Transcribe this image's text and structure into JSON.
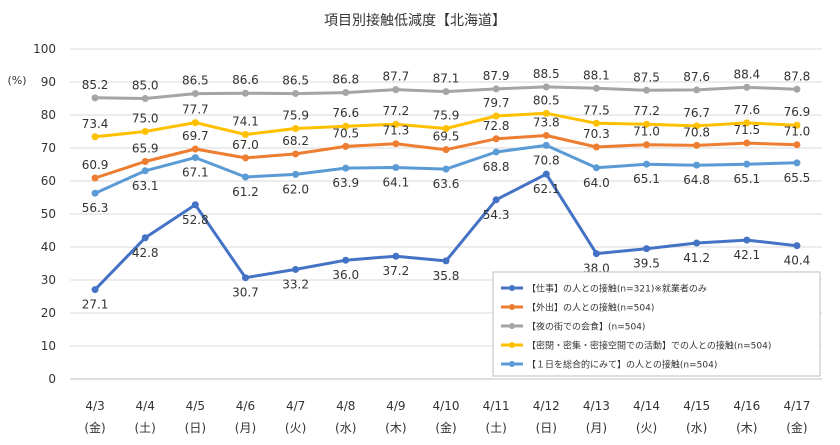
{
  "chart_data": {
    "type": "line",
    "title": "項目別接触低減度【北海道】",
    "ylabel": "(%)",
    "ylim": [
      0,
      100
    ],
    "yticks": [
      0,
      10,
      20,
      30,
      40,
      50,
      60,
      70,
      80,
      90,
      100
    ],
    "grid": true,
    "legend_position": "bottom-right",
    "categories": [
      "4/3",
      "4/4",
      "4/5",
      "4/6",
      "4/7",
      "4/8",
      "4/9",
      "4/10",
      "4/11",
      "4/12",
      "4/13",
      "4/14",
      "4/15",
      "4/16",
      "4/17"
    ],
    "weekdays": [
      "(金)",
      "(土)",
      "(日)",
      "(月)",
      "(火)",
      "(水)",
      "(木)",
      "(金)",
      "(土)",
      "(日)",
      "(月)",
      "(火)",
      "(水)",
      "(木)",
      "(金)"
    ],
    "series": [
      {
        "name": "【仕事】の人との接触(n=321)※就業者のみ",
        "color": "#4472C4",
        "label_pos": "below",
        "values": [
          27.1,
          42.8,
          52.8,
          30.7,
          33.2,
          36.0,
          37.2,
          35.8,
          54.3,
          62.1,
          38.0,
          39.5,
          41.2,
          42.1,
          40.4
        ],
        "value_labels": [
          "27.1",
          "42.8",
          "52.8",
          "30.7",
          "33.2",
          "36.0",
          "37.2",
          "35.8",
          "54.3",
          "62.1",
          "38.0",
          "39.5",
          "41.2",
          "42.1",
          "40.4"
        ]
      },
      {
        "name": "【外出】の人との接触(n=504)",
        "color": "#ED7D31",
        "label_pos": "above",
        "values": [
          60.9,
          65.9,
          69.7,
          67.0,
          68.2,
          70.5,
          71.3,
          69.5,
          72.8,
          73.8,
          70.3,
          71.0,
          70.8,
          71.5,
          71.0
        ],
        "value_labels": [
          "60.9",
          "65.9",
          "69.7",
          "67.0",
          "68.2",
          "70.5",
          "71.3",
          "69.5",
          "72.8",
          "73.8",
          "70.3",
          "71.0",
          "70.8",
          "71.5",
          "71.0"
        ]
      },
      {
        "name": "【夜の街での会食】(n=504)",
        "color": "#A5A5A5",
        "label_pos": "above",
        "values": [
          85.2,
          85.0,
          86.5,
          86.6,
          86.5,
          86.8,
          87.7,
          87.1,
          87.9,
          88.5,
          88.1,
          87.5,
          87.6,
          88.4,
          87.8
        ],
        "value_labels": [
          "85.2",
          "85.0",
          "86.5",
          "86.6",
          "86.5",
          "86.8",
          "87.7",
          "87.1",
          "87.9",
          "88.5",
          "88.1",
          "87.5",
          "87.6",
          "88.4",
          "87.8"
        ]
      },
      {
        "name": "【密閉・密集・密接空間での活動】での人との接触(n=504)",
        "color": "#FFC000",
        "label_pos": "above",
        "values": [
          73.4,
          75.0,
          77.7,
          74.1,
          75.9,
          76.6,
          77.2,
          75.9,
          79.7,
          80.5,
          77.5,
          77.2,
          76.7,
          77.6,
          76.9
        ],
        "value_labels": [
          "73.4",
          "75.0",
          "77.7",
          "74.1",
          "75.9",
          "76.6",
          "77.2",
          "75.9",
          "79.7",
          "80.5",
          "77.5",
          "77.2",
          "76.7",
          "77.6",
          "76.9"
        ]
      },
      {
        "name": "【１日を総合的にみて】の人との接触(n=504)",
        "color": "#5B9BD5",
        "label_pos": "below",
        "values": [
          56.3,
          63.1,
          67.1,
          61.2,
          62.0,
          63.9,
          64.1,
          63.6,
          68.8,
          70.8,
          64.0,
          65.1,
          64.8,
          65.1,
          65.5
        ],
        "value_labels": [
          "56.3",
          "63.1",
          "67.1",
          "61.2",
          "62.0",
          "63.9",
          "64.1",
          "63.6",
          "68.8",
          "70.8",
          "64.0",
          "65.1",
          "64.8",
          "65.1",
          "65.5"
        ]
      }
    ]
  }
}
